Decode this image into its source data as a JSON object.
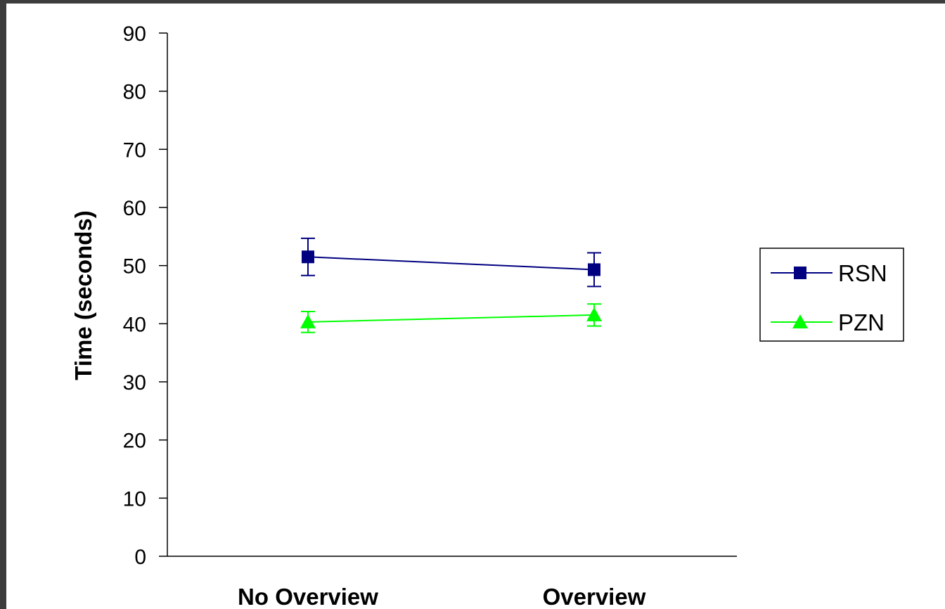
{
  "chart_data": {
    "type": "line",
    "categories": [
      "No Overview",
      "Overview"
    ],
    "ylabel": "Time (seconds)",
    "xlabel": "",
    "ylim": [
      0,
      90
    ],
    "yticks": [
      0,
      10,
      20,
      30,
      40,
      50,
      60,
      70,
      80,
      90
    ],
    "grid": false,
    "legend_position": "right",
    "series": [
      {
        "name": "RSN",
        "color": "#000080",
        "marker": "square",
        "values": [
          51.5,
          49.3
        ],
        "error": [
          3.2,
          2.9
        ]
      },
      {
        "name": "PZN",
        "color": "#00ff00",
        "marker": "triangle",
        "values": [
          40.3,
          41.5
        ],
        "error": [
          1.8,
          1.9
        ]
      }
    ]
  }
}
